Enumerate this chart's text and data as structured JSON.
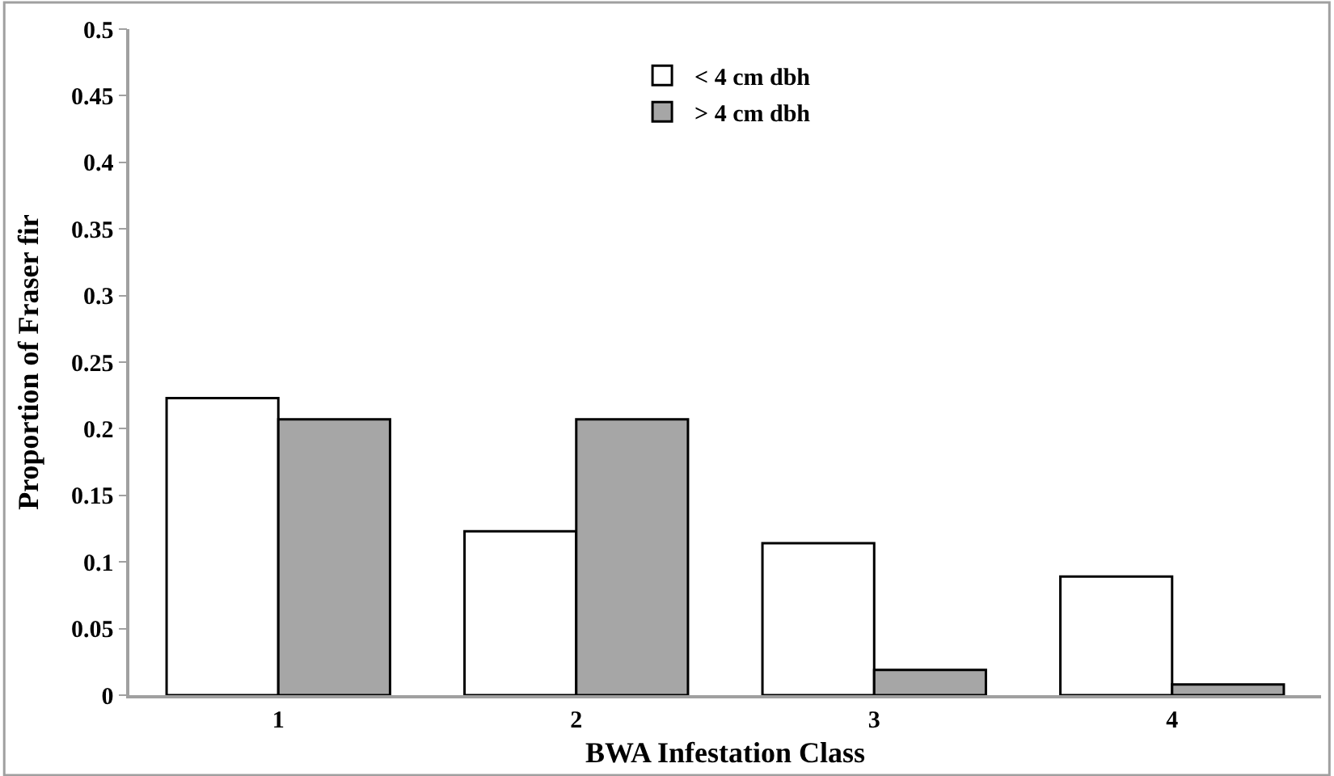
{
  "chart_data": {
    "type": "bar",
    "xlabel": "BWA Infestation Class",
    "ylabel": "Proportion of Fraser fir",
    "categories": [
      "1",
      "2",
      "3",
      "4"
    ],
    "series": [
      {
        "name": "< 4 cm dbh",
        "color": "#ffffff",
        "values": [
          0.223,
          0.123,
          0.114,
          0.089
        ]
      },
      {
        "name": "> 4 cm dbh",
        "color": "#a6a6a6",
        "values": [
          0.207,
          0.207,
          0.019,
          0.008
        ]
      }
    ],
    "ylim": [
      0,
      0.5
    ],
    "yticks": [
      0,
      0.05,
      0.1,
      0.15,
      0.2,
      0.25,
      0.3,
      0.35,
      0.4,
      0.45,
      0.5
    ],
    "legend": "top"
  }
}
